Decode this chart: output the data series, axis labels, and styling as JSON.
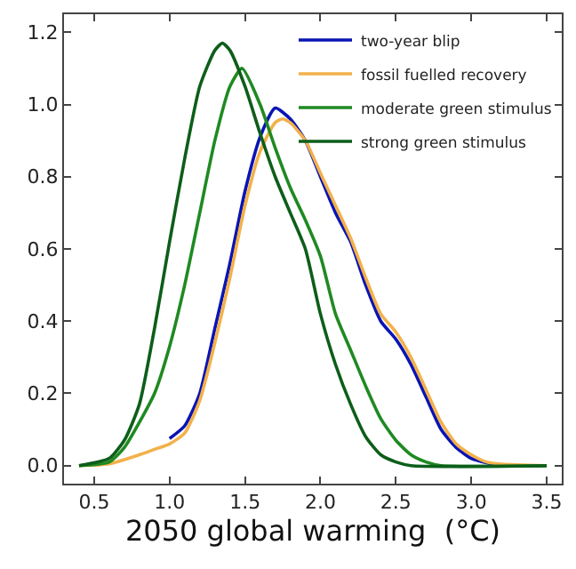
{
  "chart_data": {
    "type": "line",
    "xlabel": "2050 global warming  (°C)",
    "xlim": [
      0.3,
      3.6
    ],
    "xticks": [
      0.5,
      {
        "value": 1,
        "label": "1.0"
      },
      1.5,
      {
        "value": 2,
        "label": "2.0"
      },
      2.5,
      {
        "value": 3,
        "label": "3.0"
      },
      3.5
    ],
    "ylim": [
      -0.05,
      1.25
    ],
    "yticks": [
      {
        "value": 0,
        "label": "0.0"
      },
      0.2,
      0.4,
      0.6,
      0.8,
      {
        "value": 1,
        "label": "1.0"
      },
      1.2
    ],
    "legend": "top right",
    "marker": "none",
    "line_style": "solid",
    "series": [
      {
        "name": "two-year blip",
        "color": "#0a14b4",
        "x": [
          1.0,
          1.1,
          1.2,
          1.3,
          1.4,
          1.5,
          1.6,
          1.7,
          1.8,
          1.9,
          2.0,
          2.1,
          2.2,
          2.3,
          2.4,
          2.5,
          2.6,
          2.7,
          2.8,
          2.9,
          3.0,
          3.1,
          3.2,
          3.5
        ],
        "values": [
          0.075,
          0.11,
          0.2,
          0.38,
          0.56,
          0.76,
          0.91,
          0.99,
          0.96,
          0.9,
          0.8,
          0.7,
          0.62,
          0.5,
          0.4,
          0.35,
          0.28,
          0.19,
          0.1,
          0.05,
          0.02,
          0.008,
          0,
          0
        ]
      },
      {
        "name": "fossil fuelled recovery",
        "color": "#f2b14a",
        "x": [
          0.4,
          0.6,
          0.8,
          0.9,
          1.0,
          1.1,
          1.2,
          1.3,
          1.4,
          1.5,
          1.6,
          1.7,
          1.75,
          1.8,
          1.9,
          2.0,
          2.1,
          2.2,
          2.3,
          2.4,
          2.5,
          2.6,
          2.7,
          2.8,
          2.9,
          3.0,
          3.1,
          3.2,
          3.5
        ],
        "values": [
          0,
          0.005,
          0.03,
          0.045,
          0.06,
          0.09,
          0.18,
          0.34,
          0.52,
          0.72,
          0.87,
          0.95,
          0.96,
          0.95,
          0.9,
          0.81,
          0.72,
          0.63,
          0.52,
          0.42,
          0.37,
          0.3,
          0.21,
          0.12,
          0.06,
          0.03,
          0.01,
          0.004,
          0
        ]
      },
      {
        "name": "moderate green stimulus",
        "color": "#1f8a22",
        "x": [
          0.4,
          0.6,
          0.7,
          0.8,
          0.9,
          1.0,
          1.1,
          1.2,
          1.3,
          1.4,
          1.48,
          1.6,
          1.7,
          1.8,
          1.9,
          2.0,
          2.1,
          2.2,
          2.3,
          2.4,
          2.5,
          2.6,
          2.7,
          2.8,
          3.5
        ],
        "values": [
          0,
          0.01,
          0.05,
          0.12,
          0.2,
          0.33,
          0.5,
          0.7,
          0.9,
          1.05,
          1.1,
          1.0,
          0.88,
          0.77,
          0.68,
          0.58,
          0.42,
          0.32,
          0.22,
          0.13,
          0.07,
          0.03,
          0.01,
          0,
          0
        ]
      },
      {
        "name": "strong green stimulus",
        "color": "#0d5e1a",
        "x": [
          0.4,
          0.6,
          0.7,
          0.8,
          0.9,
          1.0,
          1.1,
          1.2,
          1.3,
          1.35,
          1.4,
          1.5,
          1.6,
          1.7,
          1.8,
          1.9,
          2.0,
          2.1,
          2.2,
          2.3,
          2.4,
          2.5,
          2.6,
          3.5
        ],
        "values": [
          0,
          0.02,
          0.07,
          0.17,
          0.38,
          0.62,
          0.85,
          1.05,
          1.15,
          1.17,
          1.15,
          1.05,
          0.92,
          0.8,
          0.7,
          0.6,
          0.42,
          0.28,
          0.17,
          0.08,
          0.03,
          0.01,
          0,
          0
        ]
      }
    ]
  }
}
